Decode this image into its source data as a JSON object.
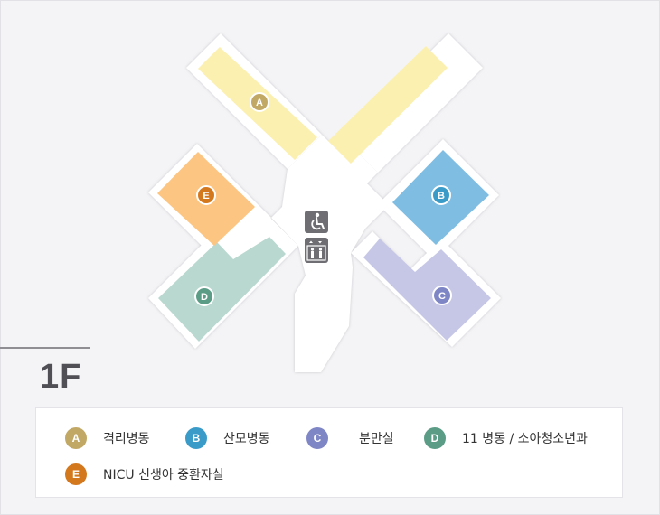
{
  "floor": {
    "label": "1F"
  },
  "map": {
    "pictograms": [
      "wheelchair-accessible-icon",
      "elevator-icon"
    ],
    "zones": [
      {
        "id": "A",
        "color": "#fbf0b0",
        "marker_color": "#c2a865"
      },
      {
        "id": "A",
        "color": "#fbf0b0",
        "marker_color": "#c2a865"
      },
      {
        "id": "B",
        "color": "#80bde3",
        "marker_color": "#3a9bc9"
      },
      {
        "id": "C",
        "color": "#c6c7e6",
        "marker_color": "#7f86c6"
      },
      {
        "id": "D",
        "color": "#b9d8d0",
        "marker_color": "#5b9c87"
      },
      {
        "id": "E",
        "color": "#fdc582",
        "marker_color": "#d4781e"
      }
    ]
  },
  "legend": {
    "items": [
      {
        "letter": "A",
        "label": "격리병동",
        "color": "#c2a865"
      },
      {
        "letter": "B",
        "label": "산모병동",
        "color": "#3a9bc9"
      },
      {
        "letter": "C",
        "label": "분만실",
        "color": "#7f86c6"
      },
      {
        "letter": "D",
        "label": "11 병동 / 소아청소년과",
        "color": "#5b9c87"
      },
      {
        "letter": "E",
        "label": "NICU 신생아 중환자실",
        "color": "#d4781e"
      }
    ]
  }
}
